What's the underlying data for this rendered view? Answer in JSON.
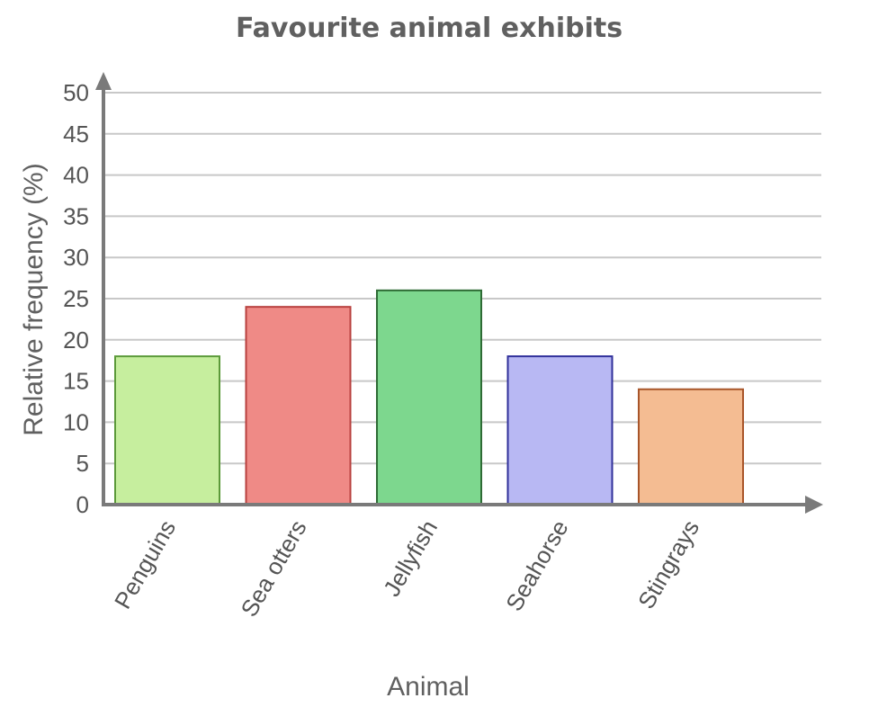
{
  "chart_data": {
    "type": "bar",
    "title": "Favourite animal exhibits",
    "xlabel": "Animal",
    "ylabel": "Relative frequency (%)",
    "ylim": [
      0,
      50
    ],
    "yticks": [
      0,
      5,
      10,
      15,
      20,
      25,
      30,
      35,
      40,
      45,
      50
    ],
    "grid": true,
    "categories": [
      "Penguins",
      "Sea otters",
      "Jellyfish",
      "Seahorse",
      "Stingrays"
    ],
    "values": [
      18,
      24,
      26,
      18,
      14
    ],
    "colors": [
      {
        "fill": "#c6ee9e",
        "stroke": "#5c9a3a"
      },
      {
        "fill": "#ef8a86",
        "stroke": "#b8413f"
      },
      {
        "fill": "#7dd78e",
        "stroke": "#2e6b35"
      },
      {
        "fill": "#b8b8f3",
        "stroke": "#2f2f9a"
      },
      {
        "fill": "#f4bc92",
        "stroke": "#a8552a"
      }
    ]
  }
}
